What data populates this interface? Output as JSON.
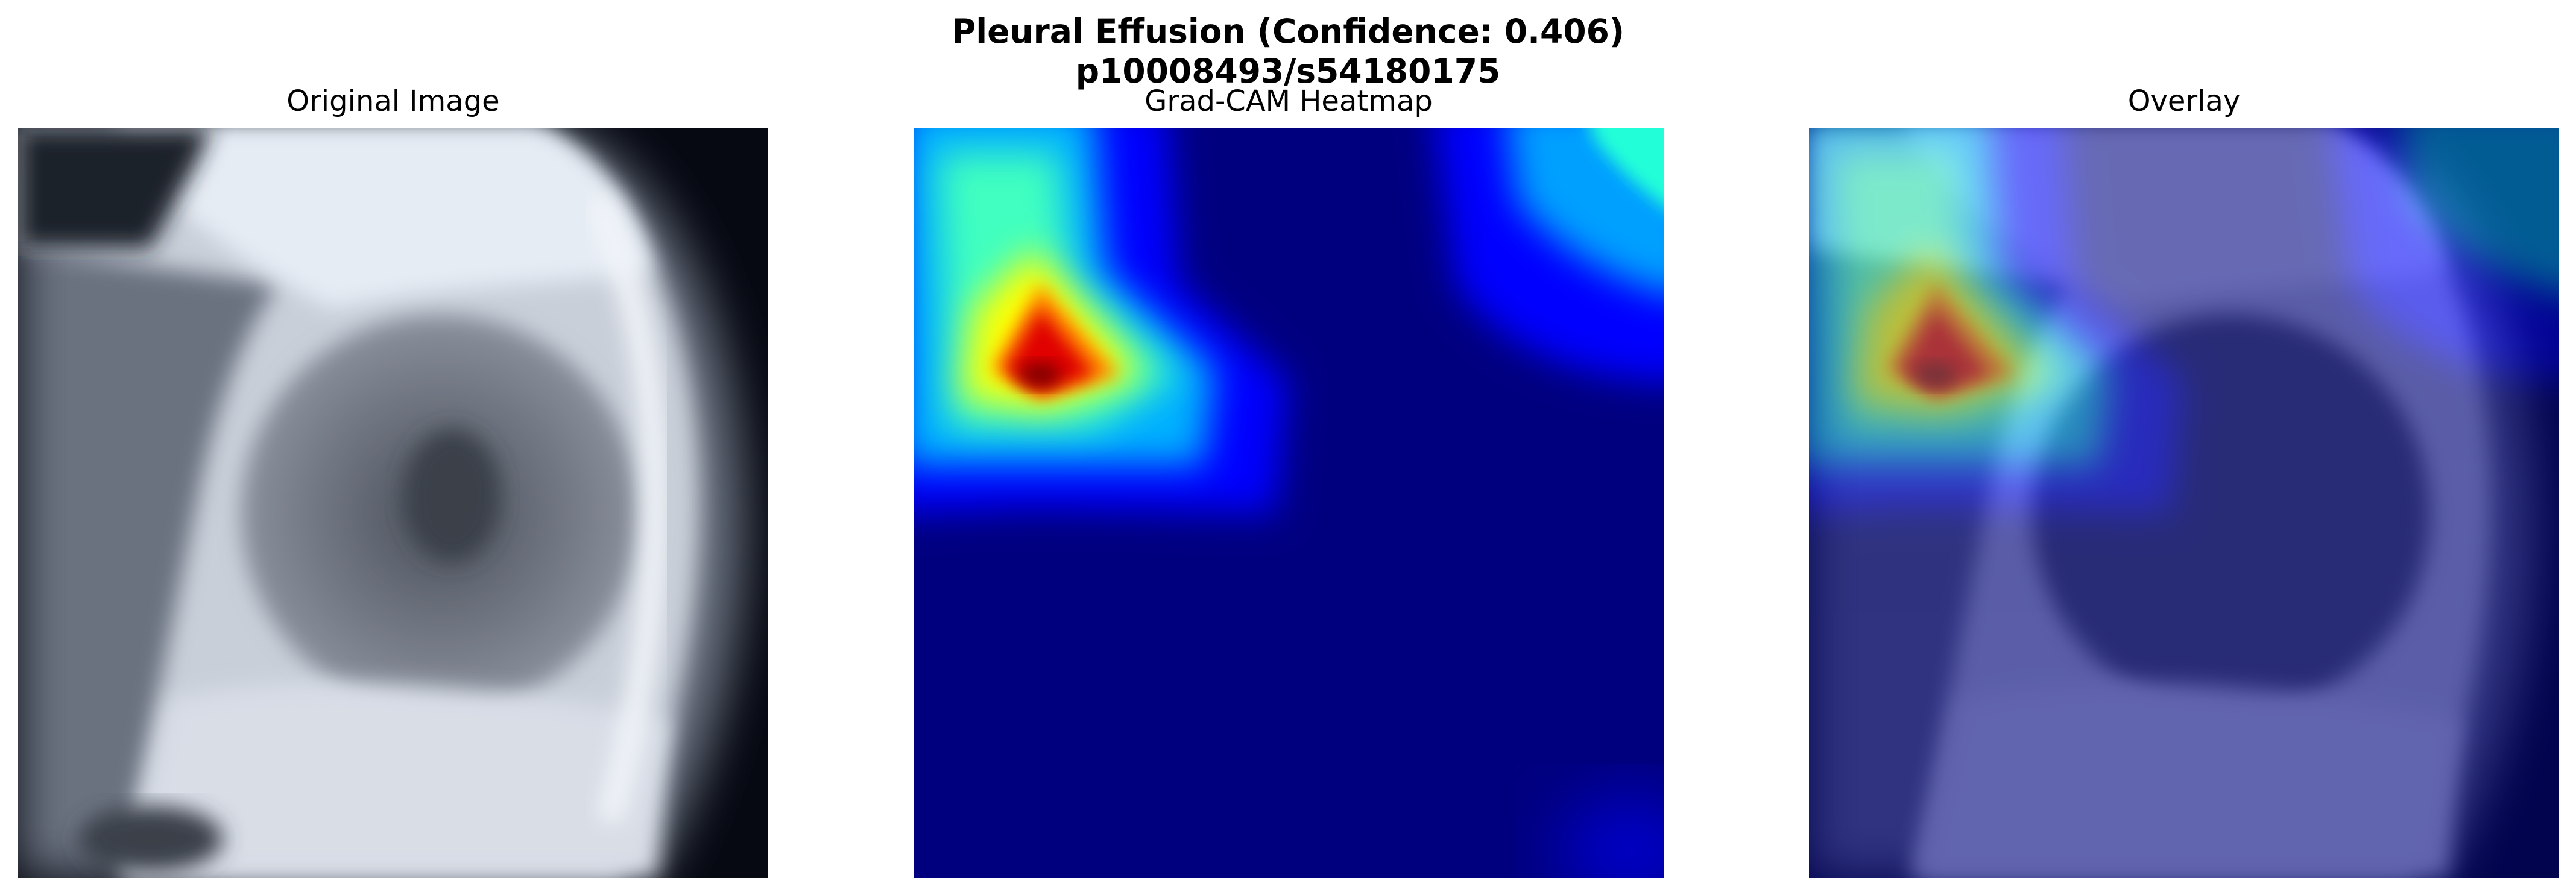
{
  "figure": {
    "title_line1": "Pleural Effusion (Confidence: 0.406)",
    "title_line2": "p10008493/s54180175"
  },
  "panels": [
    {
      "title": "Original Image"
    },
    {
      "title": "Grad-CAM Heatmap"
    },
    {
      "title": "Overlay"
    }
  ],
  "colors": {
    "background": "#ffffff",
    "heatmap_low": "#00007f",
    "heatmap_peak": "#7f0000",
    "xray_dark": "#060912",
    "xray_bright": "#e6ecf4"
  }
}
